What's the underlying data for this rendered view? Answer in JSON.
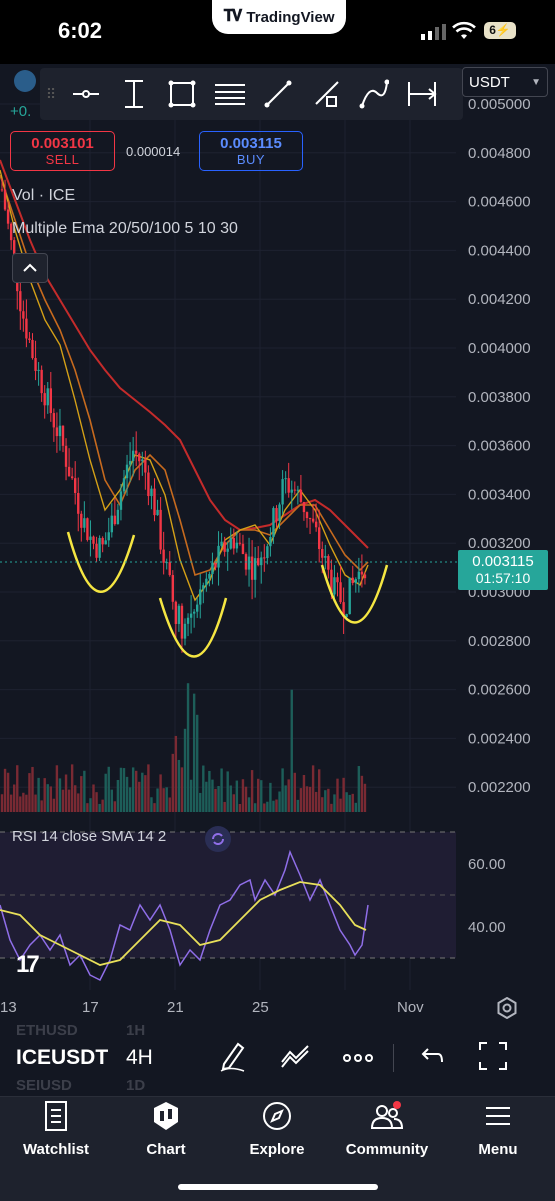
{
  "status_bar": {
    "time": "6:02",
    "battery": "6⚡",
    "pill_label": "TradingView"
  },
  "toolbar": {
    "currency": "USDT",
    "plus_fragment": "+0."
  },
  "trade": {
    "sell_price": "0.003101",
    "sell_label": "SELL",
    "spread": "0.000014",
    "buy_price": "0.003115",
    "buy_label": "BUY"
  },
  "legend": {
    "volume": "Vol · ICE",
    "ema": "Multiple Ema 20/50/100 5 10 30"
  },
  "price_axis": [
    "0.005000",
    "0.004800",
    "0.004600",
    "0.004400",
    "0.004200",
    "0.004000",
    "0.003800",
    "0.003600",
    "0.003400",
    "0.003200",
    "0.003000",
    "0.002800",
    "0.002600",
    "0.002400",
    "0.002200"
  ],
  "last_price": {
    "price": "0.003115",
    "countdown": "01:57:10"
  },
  "rsi": {
    "legend": "RSI 14 close SMA 14 2",
    "levels": [
      "60.00",
      "40.00"
    ]
  },
  "time_axis": [
    "13",
    "17",
    "21",
    "25",
    "Nov"
  ],
  "symbol_bar": {
    "symbol": "ICEUSDT",
    "timeframe": "4H",
    "ghost_above_symbol": "ETHUSD",
    "ghost_above_tf": "1H",
    "ghost_below_symbol": "SEIUSD",
    "ghost_below_tf": "1D"
  },
  "nav": [
    {
      "label": "Watchlist",
      "icon": "watchlist-icon"
    },
    {
      "label": "Chart",
      "icon": "chart-icon"
    },
    {
      "label": "Explore",
      "icon": "compass-icon"
    },
    {
      "label": "Community",
      "icon": "community-icon"
    },
    {
      "label": "Menu",
      "icon": "menu-icon"
    }
  ],
  "colors": {
    "up": "#26a69a",
    "down": "#f23645",
    "ema_fast": "#d4a017",
    "ema_mid": "#c66a1e",
    "ema_slow": "#c42b2b",
    "rsi_line": "#8f6ee8",
    "rsi_sma": "#e8e05a",
    "annotation": "#f5e642",
    "accent": "#2962ff"
  },
  "chart_data": {
    "type": "candlestick",
    "symbol": "ICEUSDT",
    "interval": "4H",
    "y_range": [
      0.0021,
      0.005
    ],
    "x_ticks": [
      "13",
      "17",
      "21",
      "25",
      "Nov"
    ],
    "close_path": [
      0.00465,
      0.0044,
      0.00415,
      0.00398,
      0.00385,
      0.00372,
      0.0036,
      0.00345,
      0.0033,
      0.0032,
      0.00318,
      0.0033,
      0.00345,
      0.00358,
      0.00352,
      0.00338,
      0.00315,
      0.00295,
      0.00285,
      0.00295,
      0.00302,
      0.0031,
      0.00318,
      0.00322,
      0.00315,
      0.0031,
      0.00318,
      0.0033,
      0.00345,
      0.00342,
      0.00335,
      0.00325,
      0.00312,
      0.003,
      0.00295,
      0.00305,
      0.003115
    ],
    "last_price": 0.003115,
    "annotations": "three yellow U-shaped curves marking a bottom pattern",
    "rsi": {
      "period": 14,
      "sma": 14,
      "levels": [
        60,
        40
      ]
    }
  }
}
